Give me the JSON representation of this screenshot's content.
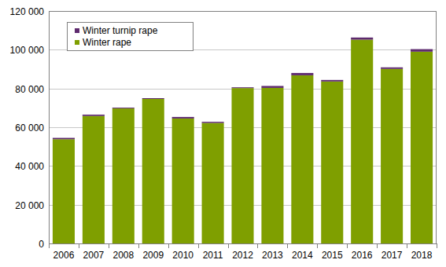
{
  "chart_data": {
    "type": "bar",
    "stacked": true,
    "grid": true,
    "legend": "upper left",
    "categories": [
      "2006",
      "2007",
      "2008",
      "2009",
      "2010",
      "2011",
      "2012",
      "2013",
      "2014",
      "2015",
      "2016",
      "2017",
      "2018"
    ],
    "series": [
      {
        "name": "Winter rape",
        "color": "#7f9f00",
        "values": [
          53800,
          65800,
          69700,
          74600,
          64500,
          62200,
          80200,
          80300,
          86800,
          83600,
          105200,
          90100,
          99000
        ]
      },
      {
        "name": "Winter turnip rape",
        "color": "#5e2a6e",
        "values": [
          700,
          700,
          400,
          400,
          800,
          600,
          400,
          1000,
          1200,
          800,
          1100,
          800,
          1300
        ]
      }
    ],
    "ylim": [
      0,
      120000
    ],
    "yticks": [
      0,
      {
        "value": 20000,
        "label": "20 000"
      },
      {
        "value": 40000,
        "label": "40 000"
      },
      {
        "value": 60000,
        "label": "60 000"
      },
      {
        "value": 80000,
        "label": "80 000"
      },
      {
        "value": 100000,
        "label": "100 000"
      },
      {
        "value": 120000,
        "label": "120 000"
      }
    ]
  }
}
